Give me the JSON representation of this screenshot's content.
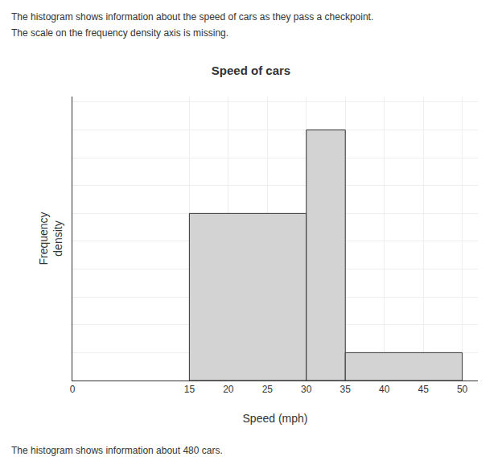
{
  "chart_data": {
    "type": "histogram",
    "title": "Speed of cars",
    "subtitle": [
      "The histogram shows information about the speed of cars as they pass a checkpoint.",
      "The scale on the frequency density axis is missing."
    ],
    "annotations": [
      "The histogram shows information about 480 cars."
    ],
    "xlabel": "Speed (mph)",
    "ylabel": "Frequency\ndensity",
    "bins": [
      15,
      30,
      35,
      50
    ],
    "values": [
      0.6,
      0.9,
      0.1
    ],
    "color": "#d3d3d3",
    "xlim": [
      0,
      52
    ],
    "xticks": [
      0,
      15,
      20,
      25,
      30,
      35,
      40,
      45,
      50
    ],
    "ylim": [
      0,
      1.02
    ],
    "yticks": [
      0,
      0.1,
      0.2,
      0.3,
      0.4,
      0.5,
      0.6,
      0.7,
      0.8,
      0.9,
      1.0
    ],
    "tick_labels": "x",
    "grid": true
  }
}
